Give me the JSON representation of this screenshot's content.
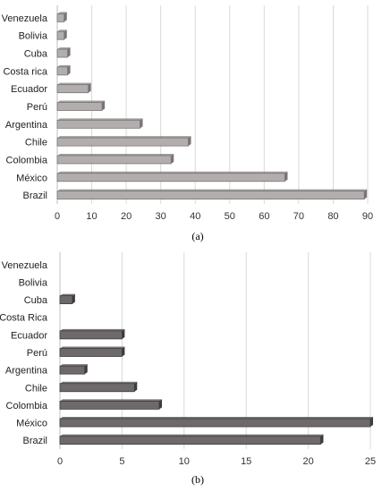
{
  "chart_data": [
    {
      "type": "bar",
      "orientation": "horizontal",
      "panel_label": "(a)",
      "title": "",
      "xlabel": "",
      "ylabel": "",
      "categories": [
        "Venezuela",
        "Bolivia",
        "Cuba",
        "Costa rica",
        "Ecuador",
        "Perú",
        "Argentina",
        "Chile",
        "Colombia",
        "México",
        "Brazil"
      ],
      "values": [
        2,
        2,
        3,
        3,
        9,
        13,
        24,
        38,
        33,
        66,
        89
      ],
      "xlim": [
        0,
        90
      ],
      "xticks": [
        0,
        10,
        20,
        30,
        40,
        50,
        60,
        70,
        80,
        90
      ],
      "grid": true,
      "legend": "none",
      "bar_color": "#b3aeae",
      "bar_edge_color": "#7a7575"
    },
    {
      "type": "bar",
      "orientation": "horizontal",
      "panel_label": "(b)",
      "title": "",
      "xlabel": "",
      "ylabel": "",
      "categories": [
        "Venezuela",
        "Bolivia",
        "Cuba",
        "Costa Rica",
        "Ecuador",
        "Perú",
        "Argentina",
        "Chile",
        "Colombia",
        "México",
        "Brazil"
      ],
      "values": [
        0,
        0,
        1,
        0,
        5,
        5,
        2,
        6,
        8,
        25,
        21
      ],
      "xlim": [
        0,
        25
      ],
      "xticks": [
        0,
        5,
        10,
        15,
        20,
        25
      ],
      "grid": true,
      "legend": "none",
      "bar_color": "#6e6a6b",
      "bar_edge_color": "#3f3c3d"
    }
  ]
}
